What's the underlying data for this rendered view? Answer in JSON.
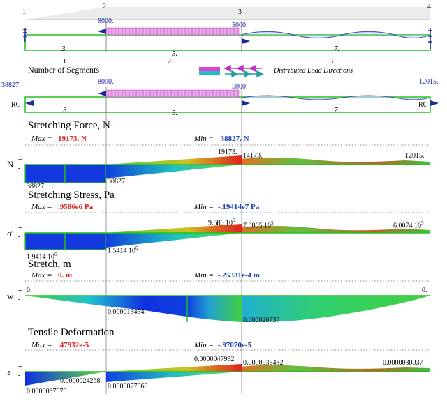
{
  "nodes": [
    "1",
    "2",
    "3",
    "4"
  ],
  "top_loads": {
    "load_2": "8000.",
    "load_3": "5000."
  },
  "top_segments": {
    "s1": "3.",
    "s2": "5.",
    "s3": "7."
  },
  "element_numbers": [
    "1",
    "2",
    "3"
  ],
  "legend": {
    "segments_label": "Number of Segments",
    "distributed_label": "Distributed Load Directions"
  },
  "model2": {
    "left_force": "38827.",
    "load_2": "8000.",
    "load_3": "5000.",
    "right_force": "12015.",
    "rc_left": "RC",
    "rc_right": "RC",
    "s1": "3.",
    "s2": "5.",
    "s3": "7."
  },
  "panels": {
    "force": {
      "title": "Stretching Force, N",
      "max_label": "Max =",
      "max_value": "19173. N",
      "min_label": "Min =",
      "min_value": "-38827. N",
      "axis": "N",
      "plus": "+",
      "minus": "-",
      "labels": {
        "a": "38827.",
        "b": "30827.",
        "c": "19173.",
        "d": "14173.",
        "e": "12015."
      }
    },
    "stress": {
      "title": "Stretching Stress, Pa",
      "max_label": "Max =",
      "max_value": ".9586e6 Pa",
      "min_label": "Min =",
      "min_value": "-.19414e7 Pa",
      "axis": "σ",
      "plus": "+",
      "minus": "-",
      "labels": {
        "a": "1.9414 10",
        "a_exp": "6",
        "b": "1.5414 10",
        "b_exp": "6",
        "c": "9.586 10",
        "c_exp": "5",
        "d": "7.0865 10",
        "d_exp": "5",
        "e": "6.0074 10",
        "e_exp": "5"
      }
    },
    "stretch": {
      "title": "Stretch, m",
      "max_label": "Max =",
      "max_value": "0. m",
      "min_label": "Min =",
      "min_value": "-.25331e-4 m",
      "axis": "w",
      "plus": "+",
      "minus": "-",
      "labels": {
        "a": "0.",
        "b": "0.000013454",
        "c": "0.000020737",
        "d": "0."
      }
    },
    "strain": {
      "title": "Tensile Deformation",
      "max_label": "Max =",
      "max_value": ".47932e-5",
      "min_label": "Min =",
      "min_value": "-.97070e-5",
      "axis": "ε",
      "plus": "+",
      "minus": "-",
      "labels": {
        "a": "0.0000097070",
        "b": "0.0000024268",
        "c": "0.0000077068",
        "d": "0.0000047932",
        "e": "0.0000035432",
        "f": "0.0000030037"
      }
    }
  },
  "colors": {
    "bar_outline": "#22c022",
    "pink_load": "#e040d0",
    "wave": "#2a3aa8",
    "arrow": "#1a2a9a",
    "max_red": "#e02020",
    "min_blue": "#1a3fb8"
  }
}
